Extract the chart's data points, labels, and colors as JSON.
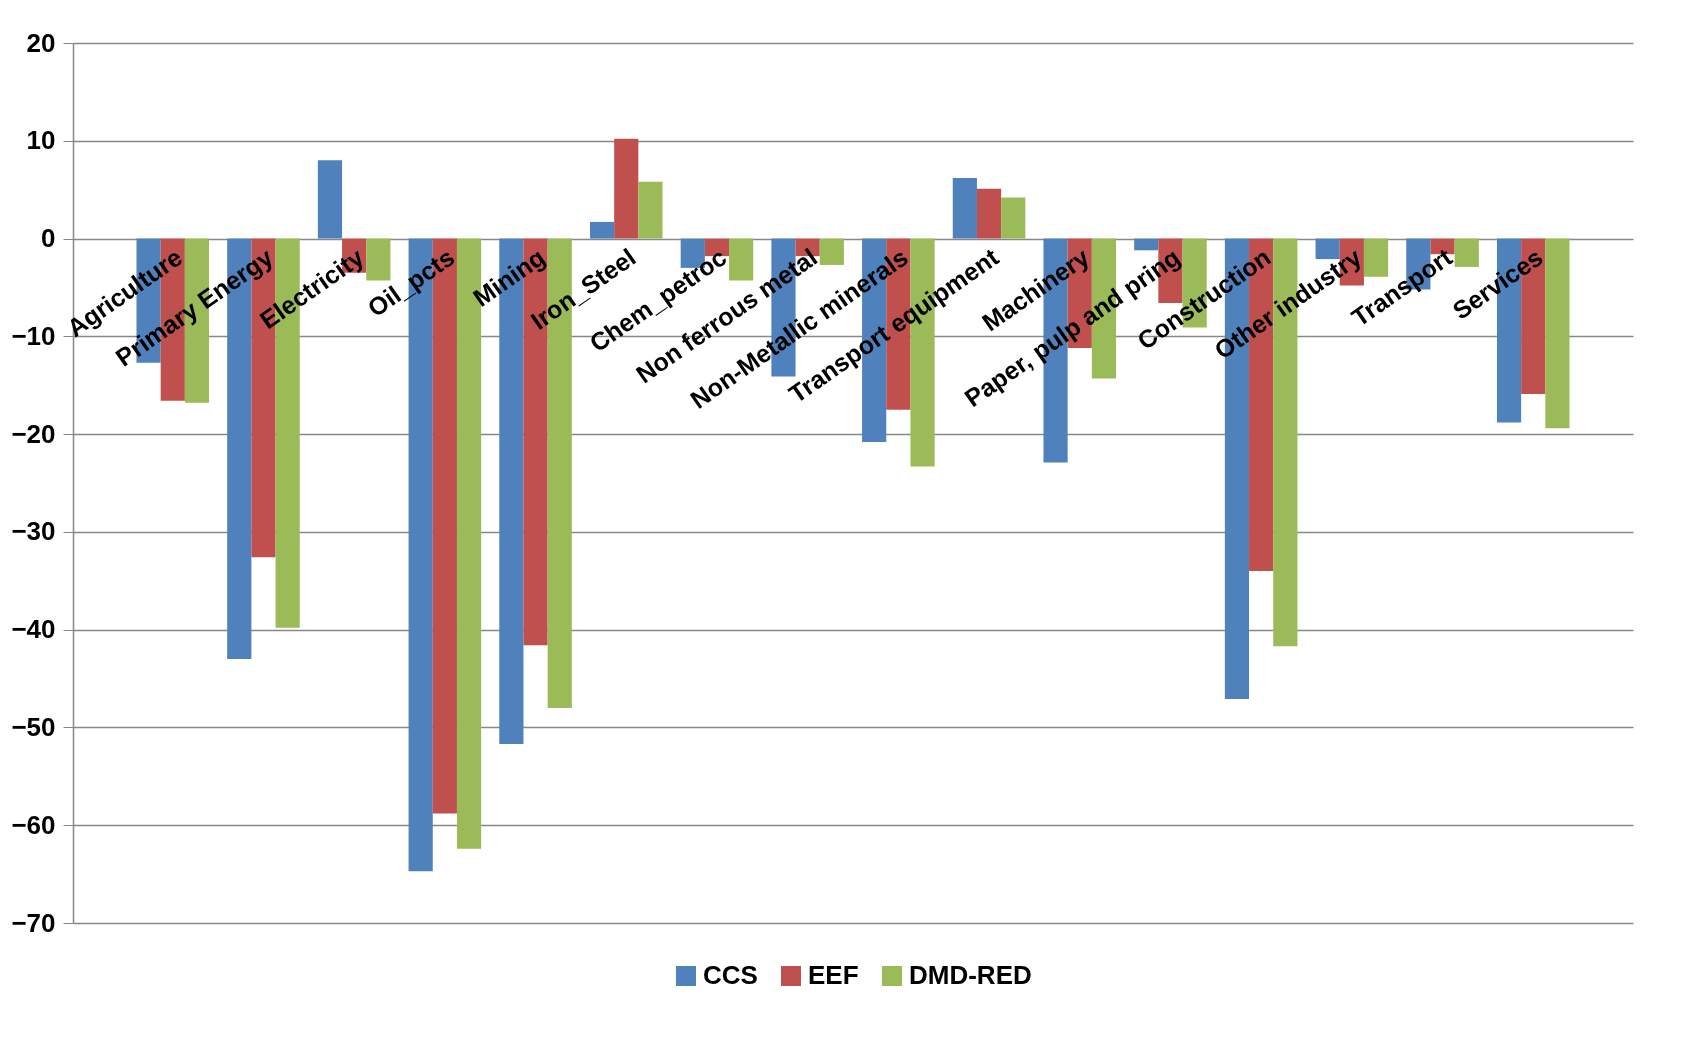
{
  "chart_data": {
    "type": "bar",
    "categories": [
      "Agriculture",
      "Primary Energy",
      "Electricity",
      "Oil_pcts",
      "Mining",
      "Iron_Steel",
      "Chem_petroc",
      "Non ferrous metal",
      "Non-Metallic minerals",
      "Transport equipment",
      "Machinery",
      "Paper, pulp and pring",
      "Construction",
      "Other industry",
      "Transport",
      "Services"
    ],
    "series": [
      {
        "name": "CCS",
        "color": "#4f81bd",
        "values": [
          -12.7,
          -43.0,
          8.0,
          -64.7,
          -51.7,
          1.7,
          -3.0,
          -14.1,
          -20.8,
          6.2,
          -22.9,
          -1.2,
          -47.1,
          -2.1,
          -5.2,
          -18.8
        ]
      },
      {
        "name": "EEF",
        "color": "#c0504d",
        "values": [
          -16.6,
          -32.6,
          -3.5,
          -58.8,
          -41.6,
          10.2,
          -1.8,
          -1.8,
          -17.5,
          5.1,
          -11.2,
          -6.6,
          -34.0,
          -4.8,
          -1.6,
          -15.9
        ]
      },
      {
        "name": "DMD-RED",
        "color": "#9bbb59",
        "values": [
          -16.8,
          -39.8,
          -4.3,
          -62.4,
          -48.0,
          5.8,
          -4.3,
          -2.7,
          -23.3,
          4.2,
          -14.3,
          -9.1,
          -41.7,
          -3.9,
          -2.9,
          -19.4
        ]
      }
    ],
    "ylim": [
      -70,
      20
    ],
    "yticks": [
      -70,
      -60,
      -50,
      -40,
      -30,
      -20,
      -10,
      0,
      10,
      20
    ],
    "grid": "y",
    "legend": "bottom"
  }
}
